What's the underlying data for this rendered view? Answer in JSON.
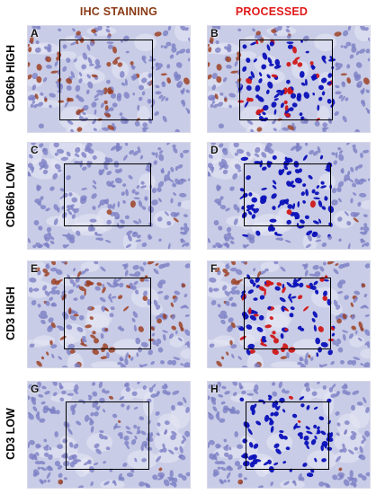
{
  "headers": {
    "left": "IHC STAINING",
    "right": "PROCESSED",
    "left_color": "#8a3a14",
    "right_color": "#e01818"
  },
  "rows": [
    {
      "label": "CD66b HIGH",
      "left_letter": "A",
      "right_letter": "B",
      "brown_level": 0.55
    },
    {
      "label": "CD66b LOW",
      "left_letter": "C",
      "right_letter": "D",
      "brown_level": 0.05
    },
    {
      "label": "CD3 HIGH",
      "left_letter": "E",
      "right_letter": "F",
      "brown_level": 0.6
    },
    {
      "label": "CD3 LOW",
      "left_letter": "G",
      "right_letter": "H",
      "brown_level": 0.04
    }
  ],
  "colors": {
    "tissue_bg": "#c9cce6",
    "hematoxylin_nucleus": "#7c7fc4",
    "dab_brown": "#9a3a1a",
    "processed_blue": "#0a10b8",
    "processed_red": "#d01818",
    "roi_border": "#000000"
  }
}
